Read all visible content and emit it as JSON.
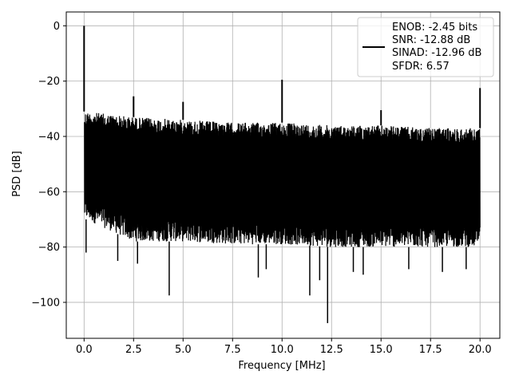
{
  "chart_data": {
    "type": "line",
    "xlabel": "Frequency [MHz]",
    "ylabel": "PSD [dB]",
    "xlim": [
      -0.9,
      21.0
    ],
    "ylim": [
      -113,
      5
    ],
    "xticks": [
      0.0,
      2.5,
      5.0,
      7.5,
      10.0,
      12.5,
      15.0,
      17.5,
      20.0
    ],
    "xtick_labels": [
      "0.0",
      "2.5",
      "5.0",
      "7.5",
      "10.0",
      "12.5",
      "15.0",
      "17.5",
      "20.0"
    ],
    "yticks": [
      0,
      -20,
      -40,
      -60,
      -80,
      -100
    ],
    "ytick_labels": [
      "0",
      "−20",
      "−40",
      "−60",
      "−80",
      "−100"
    ],
    "grid": true,
    "legend_placement": "top-right",
    "series": [
      {
        "color": "#000000",
        "noise_floor": {
          "x": [
            0.1,
            2.5,
            5.0,
            7.5,
            10.0,
            12.5,
            15.0,
            17.5,
            20.0
          ],
          "upper": [
            -31,
            -33,
            -34,
            -35,
            -35,
            -36,
            -36,
            -37,
            -37
          ],
          "lower": [
            -70,
            -78,
            -78,
            -79,
            -79,
            -80,
            -80,
            -80,
            -80
          ]
        },
        "spurs": [
          {
            "x": 0.0,
            "y": 0.0
          },
          {
            "x": 2.5,
            "y": -25.5
          },
          {
            "x": 5.0,
            "y": -27.5
          },
          {
            "x": 10.0,
            "y": -19.5
          },
          {
            "x": 15.0,
            "y": -30.5
          },
          {
            "x": 20.0,
            "y": -22.5
          }
        ],
        "dips": [
          {
            "x": 0.1,
            "y": -82
          },
          {
            "x": 1.7,
            "y": -85
          },
          {
            "x": 2.7,
            "y": -86
          },
          {
            "x": 4.3,
            "y": -97.5
          },
          {
            "x": 8.8,
            "y": -91
          },
          {
            "x": 9.2,
            "y": -88
          },
          {
            "x": 11.4,
            "y": -97.5
          },
          {
            "x": 11.9,
            "y": -92
          },
          {
            "x": 12.3,
            "y": -107.5
          },
          {
            "x": 13.6,
            "y": -89
          },
          {
            "x": 14.1,
            "y": -90
          },
          {
            "x": 16.4,
            "y": -88
          },
          {
            "x": 18.1,
            "y": -89
          },
          {
            "x": 19.3,
            "y": -88
          }
        ]
      }
    ]
  },
  "legend": {
    "lines": [
      "ENOB: -2.45 bits",
      "SNR: -12.88 dB",
      "SINAD: -12.96 dB",
      "SFDR: 6.57"
    ]
  },
  "colors": {
    "line": "#000000",
    "grid": "#b0b0b0",
    "legend_border": "#cccccc"
  }
}
